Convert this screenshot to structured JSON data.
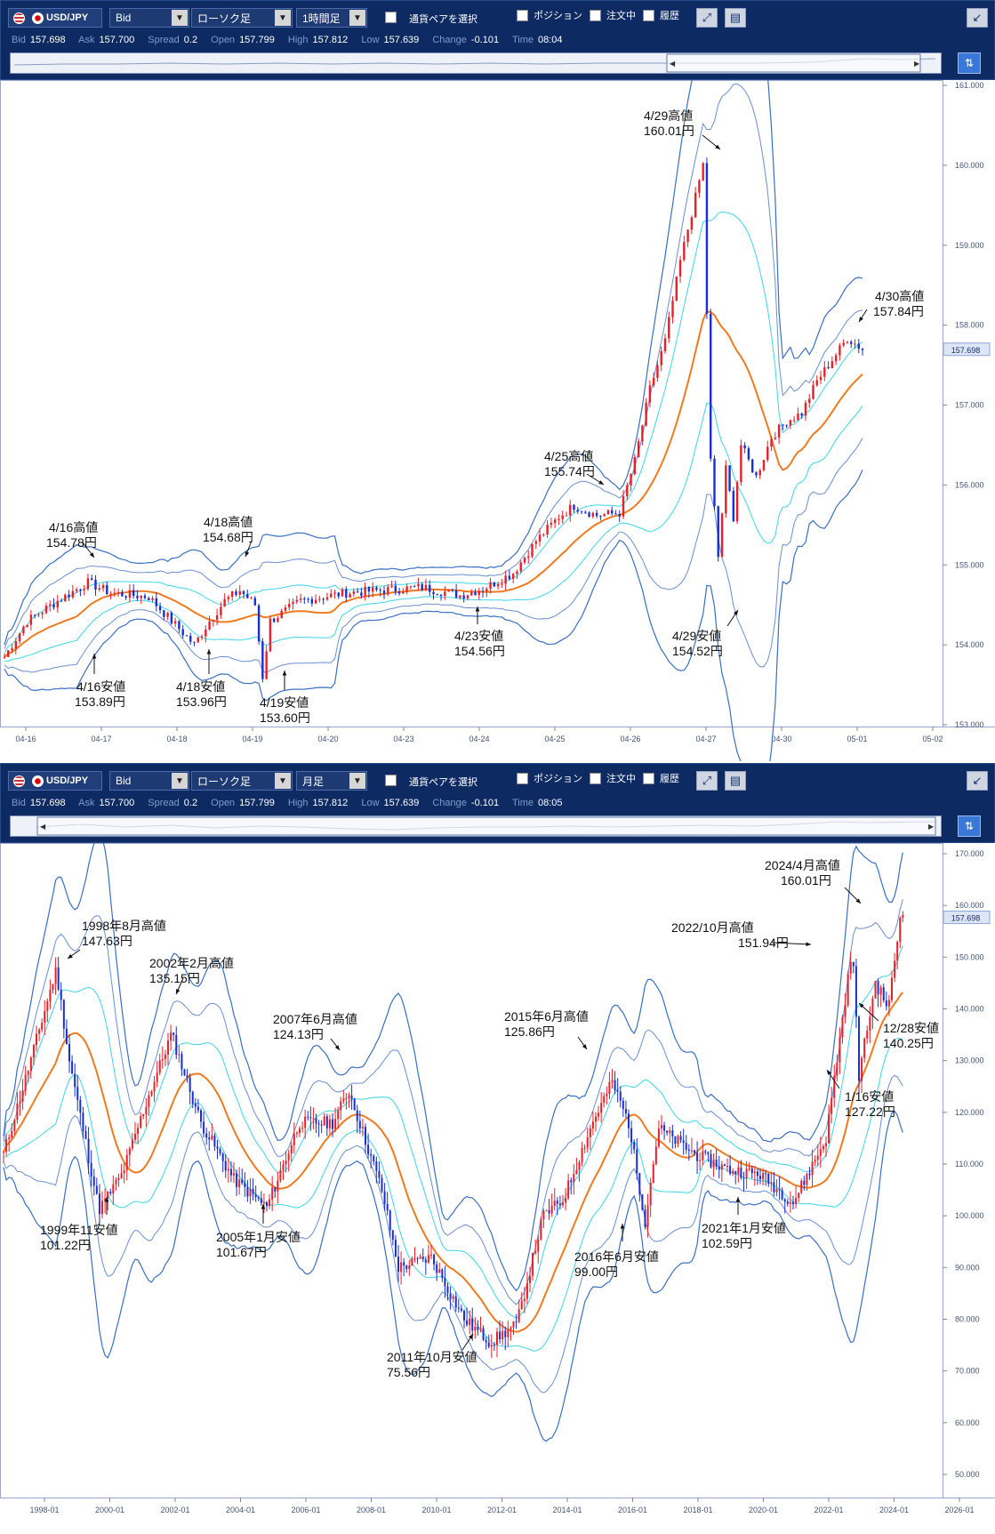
{
  "panels": [
    {
      "id": "hourly",
      "toolbar": {
        "symbol": "USD/JPY",
        "price_type": "Bid",
        "chart_type": "ローソク足",
        "timeframe": "1時間足",
        "select_pair": "通貨ペアを選択",
        "position": "ポジション",
        "orders": "注文中",
        "history": "履歴"
      },
      "quote": {
        "bid_label": "Bid",
        "bid": "157.698",
        "ask_label": "Ask",
        "ask": "157.700",
        "spread_label": "Spread",
        "spread": "0.2",
        "open_label": "Open",
        "open": "157.799",
        "high_label": "High",
        "high": "157.812",
        "low_label": "Low",
        "low": "157.639",
        "change_label": "Change",
        "change": "-0.101",
        "time_label": "Time",
        "time": "08:04"
      },
      "chart_data": {
        "type": "candlestick",
        "y_ticks": [
          "161.000",
          "160.000",
          "159.000",
          "158.000",
          "157.000",
          "156.000",
          "155.000",
          "154.000",
          "153.000"
        ],
        "ylim": [
          153.0,
          161.0
        ],
        "x_ticks": [
          "04-16",
          "04-17",
          "04-18",
          "04-19",
          "04-20",
          "04-23",
          "04-24",
          "04-25",
          "04-26",
          "04-27",
          "04-30",
          "05-01",
          "05-02"
        ],
        "current_price_label": "157.698",
        "current_price": 157.698,
        "path": [
          [
            0,
            153.85
          ],
          [
            6,
            154.3
          ],
          [
            14,
            154.55
          ],
          [
            22,
            154.78
          ],
          [
            28,
            154.65
          ],
          [
            38,
            154.6
          ],
          [
            44,
            154.3
          ],
          [
            50,
            154.0
          ],
          [
            54,
            154.3
          ],
          [
            58,
            154.55
          ],
          [
            62,
            154.68
          ],
          [
            66,
            154.5
          ],
          [
            68,
            153.6
          ],
          [
            70,
            154.3
          ],
          [
            78,
            154.55
          ],
          [
            90,
            154.65
          ],
          [
            110,
            154.72
          ],
          [
            120,
            154.62
          ],
          [
            126,
            154.7
          ],
          [
            134,
            154.9
          ],
          [
            140,
            155.3
          ],
          [
            146,
            155.6
          ],
          [
            150,
            155.74
          ],
          [
            156,
            155.62
          ],
          [
            162,
            155.65
          ],
          [
            166,
            156.3
          ],
          [
            170,
            157.2
          ],
          [
            174,
            157.8
          ],
          [
            178,
            158.8
          ],
          [
            182,
            159.6
          ],
          [
            184,
            160.01
          ],
          [
            186,
            156.3
          ],
          [
            188,
            155.1
          ],
          [
            190,
            156.2
          ],
          [
            192,
            155.6
          ],
          [
            194,
            156.5
          ],
          [
            198,
            156.1
          ],
          [
            202,
            156.6
          ],
          [
            206,
            156.8
          ],
          [
            210,
            156.9
          ],
          [
            214,
            157.3
          ],
          [
            220,
            157.7
          ],
          [
            222,
            157.84
          ],
          [
            226,
            157.7
          ]
        ],
        "annotations": [
          {
            "title": "4/16高値",
            "value": "154.78円"
          },
          {
            "title": "4/16安値",
            "value": "153.89円"
          },
          {
            "title": "4/18高値",
            "value": "154.68円"
          },
          {
            "title": "4/18安値",
            "value": "153.96円"
          },
          {
            "title": "4/19安値",
            "value": "153.60円"
          },
          {
            "title": "4/23安値",
            "value": "154.56円"
          },
          {
            "title": "4/25高値",
            "value": "155.74円"
          },
          {
            "title": "4/29高値",
            "value": "160.01円"
          },
          {
            "title": "4/29安値",
            "value": "154.52円"
          },
          {
            "title": "4/30高値",
            "value": "157.84円"
          }
        ]
      }
    },
    {
      "id": "monthly",
      "toolbar": {
        "symbol": "USD/JPY",
        "price_type": "Bid",
        "chart_type": "ローソク足",
        "timeframe": "月足",
        "select_pair": "通貨ペアを選択",
        "position": "ポジション",
        "orders": "注文中",
        "history": "履歴"
      },
      "quote": {
        "bid_label": "Bid",
        "bid": "157.698",
        "ask_label": "Ask",
        "ask": "157.700",
        "spread_label": "Spread",
        "spread": "0.2",
        "open_label": "Open",
        "open": "157.799",
        "high_label": "High",
        "high": "157.812",
        "low_label": "Low",
        "low": "157.639",
        "change_label": "Change",
        "change": "-0.101",
        "time_label": "Time",
        "time": "08:05"
      },
      "chart_data": {
        "type": "candlestick",
        "y_ticks": [
          "170.000",
          "160.000",
          "150.000",
          "140.000",
          "130.000",
          "120.000",
          "110.000",
          "100.000",
          "90.000",
          "80.000",
          "70.000",
          "60.000",
          "50.000"
        ],
        "ylim": [
          50.0,
          170.0
        ],
        "x_ticks": [
          "1998-01",
          "2000-01",
          "2002-01",
          "2004-01",
          "2006-01",
          "2008-01",
          "2010-01",
          "2012-01",
          "2014-01",
          "2016-01",
          "2018-01",
          "2020-01",
          "2022-01",
          "2024-01",
          "2026-01"
        ],
        "current_price_label": "157.698",
        "current_price": 157.698,
        "path": [
          [
            1997.0,
            112
          ],
          [
            1997.6,
            125
          ],
          [
            1998.6,
            147.63
          ],
          [
            1999.0,
            130
          ],
          [
            1999.9,
            101.22
          ],
          [
            2000.6,
            108
          ],
          [
            2001.4,
            123
          ],
          [
            2002.1,
            135.15
          ],
          [
            2003.0,
            118
          ],
          [
            2004.0,
            107
          ],
          [
            2005.0,
            101.67
          ],
          [
            2006.0,
            118
          ],
          [
            2007.0,
            118
          ],
          [
            2007.5,
            124.13
          ],
          [
            2008.5,
            105
          ],
          [
            2009.0,
            90
          ],
          [
            2010.0,
            92
          ],
          [
            2011.0,
            80
          ],
          [
            2011.8,
            75.56
          ],
          [
            2012.6,
            79
          ],
          [
            2013.4,
            100
          ],
          [
            2014.0,
            103
          ],
          [
            2014.9,
            118
          ],
          [
            2015.5,
            125.86
          ],
          [
            2016.0,
            118
          ],
          [
            2016.5,
            99.0
          ],
          [
            2016.9,
            117
          ],
          [
            2018.0,
            112
          ],
          [
            2019.0,
            109
          ],
          [
            2020.0,
            108
          ],
          [
            2021.0,
            102.59
          ],
          [
            2022.0,
            115
          ],
          [
            2022.8,
            151.94
          ],
          [
            2023.0,
            127.22
          ],
          [
            2023.5,
            145
          ],
          [
            2023.9,
            140.25
          ],
          [
            2024.3,
            160.01
          ],
          [
            2024.4,
            157.7
          ]
        ],
        "annotations": [
          {
            "title": "1998年8月高値",
            "value": "147.63円"
          },
          {
            "title": "1999年11安値",
            "value": "101.22円"
          },
          {
            "title": "2002年2月高値",
            "value": "135.15円"
          },
          {
            "title": "2005年1月安値",
            "value": "101.67円"
          },
          {
            "title": "2007年6月高値",
            "value": "124.13円"
          },
          {
            "title": "2011年10月安値",
            "value": "75.56円"
          },
          {
            "title": "2015年6月高値",
            "value": "125.86円"
          },
          {
            "title": "2016年6月安値",
            "value": "99.00円"
          },
          {
            "title": "2021年1月安値",
            "value": "102.59円"
          },
          {
            "title": "2022/10月高値",
            "value": "151.94円"
          },
          {
            "title": "2024/4月高値",
            "value": "160.01円"
          },
          {
            "title": "12/28安値",
            "value": "140.25円"
          },
          {
            "title": "1/16安値",
            "value": "127.22円"
          }
        ]
      }
    }
  ]
}
